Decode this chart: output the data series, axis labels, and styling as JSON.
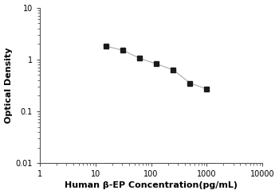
{
  "x_values": [
    15.625,
    31.25,
    62.5,
    125,
    250,
    500,
    1000
  ],
  "y_values": [
    1.8,
    1.5,
    1.05,
    0.82,
    0.63,
    0.35,
    0.27
  ],
  "xlabel": "Human β-EP Concentration(pg/mL)",
  "ylabel": "Optical Density",
  "xlim": [
    1,
    10000
  ],
  "ylim": [
    0.01,
    10
  ],
  "marker": "s",
  "marker_color": "#1a1a1a",
  "line_color": "#aaaaaa",
  "marker_size": 4,
  "line_width": 0.8,
  "background_color": "#ffffff",
  "xtick_values": [
    1,
    10,
    100,
    1000,
    10000
  ],
  "ytick_values": [
    0.01,
    0.1,
    1,
    10
  ],
  "xlabel_fontsize": 8,
  "ylabel_fontsize": 8,
  "tick_labelsize": 7
}
